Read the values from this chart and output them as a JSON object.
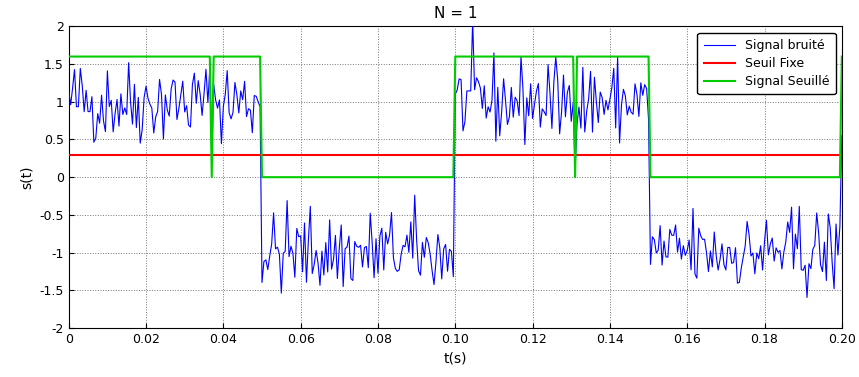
{
  "title": "N = 1",
  "xlabel": "t(s)",
  "ylabel": "s(t)",
  "xlim": [
    0,
    0.2
  ],
  "ylim": [
    -2,
    2
  ],
  "threshold": 0.3,
  "signal_high": 1.6,
  "signal_low": 0.0,
  "signal_amplitude": 1.0,
  "noise_std": 0.28,
  "sample_rate": 2000,
  "frequency": 10,
  "legend_labels": [
    "Signal bruité",
    "Seuil Fixe",
    "Signal Seuillé"
  ],
  "colors": {
    "noisy": "#0000FF",
    "threshold": "#FF0000",
    "thresholded": "#00CC00"
  },
  "background_color": "#FFFFFF",
  "seed": 42,
  "figsize": [
    8.59,
    3.77
  ],
  "dpi": 100
}
